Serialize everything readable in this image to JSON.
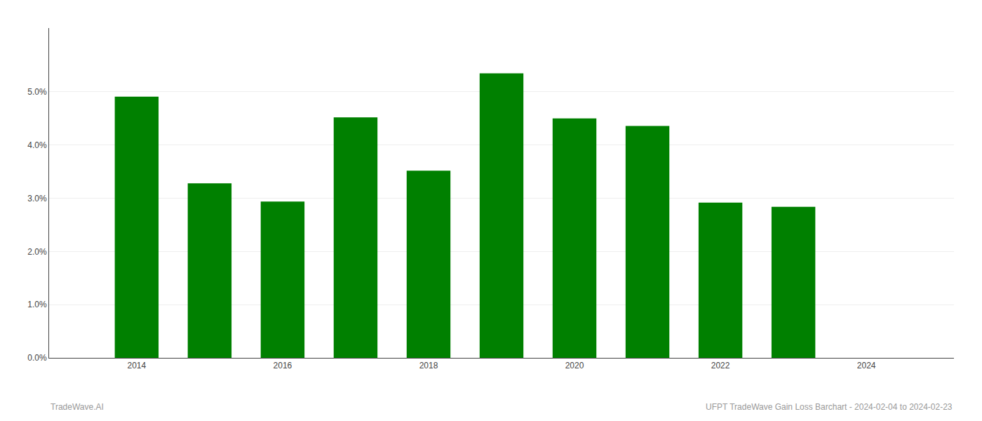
{
  "chart_data": {
    "type": "bar",
    "x": [
      2014,
      2015,
      2016,
      2017,
      2018,
      2019,
      2020,
      2021,
      2022,
      2023
    ],
    "values": [
      0.0491,
      0.0328,
      0.0294,
      0.0452,
      0.0352,
      0.0535,
      0.045,
      0.0436,
      0.0292,
      0.0284
    ],
    "color": "#008000",
    "xlim": [
      2012.8,
      2025.2
    ],
    "xticks": [
      2014,
      2016,
      2018,
      2020,
      2022,
      2024
    ],
    "ylim": [
      0.0,
      0.062
    ],
    "yticks": [
      {
        "value": 0.0,
        "label": "0.0%"
      },
      {
        "value": 0.01,
        "label": "1.0%"
      },
      {
        "value": 0.02,
        "label": "2.0%"
      },
      {
        "value": 0.03,
        "label": "3.0%"
      },
      {
        "value": 0.04,
        "label": "4.0%"
      },
      {
        "value": 0.05,
        "label": "5.0%"
      }
    ],
    "grid": "y",
    "annotations": [
      "TradeWave.AI",
      "UFPT TradeWave Gain Loss Barchart - 2024-02-04 to 2024-02-23"
    ]
  }
}
